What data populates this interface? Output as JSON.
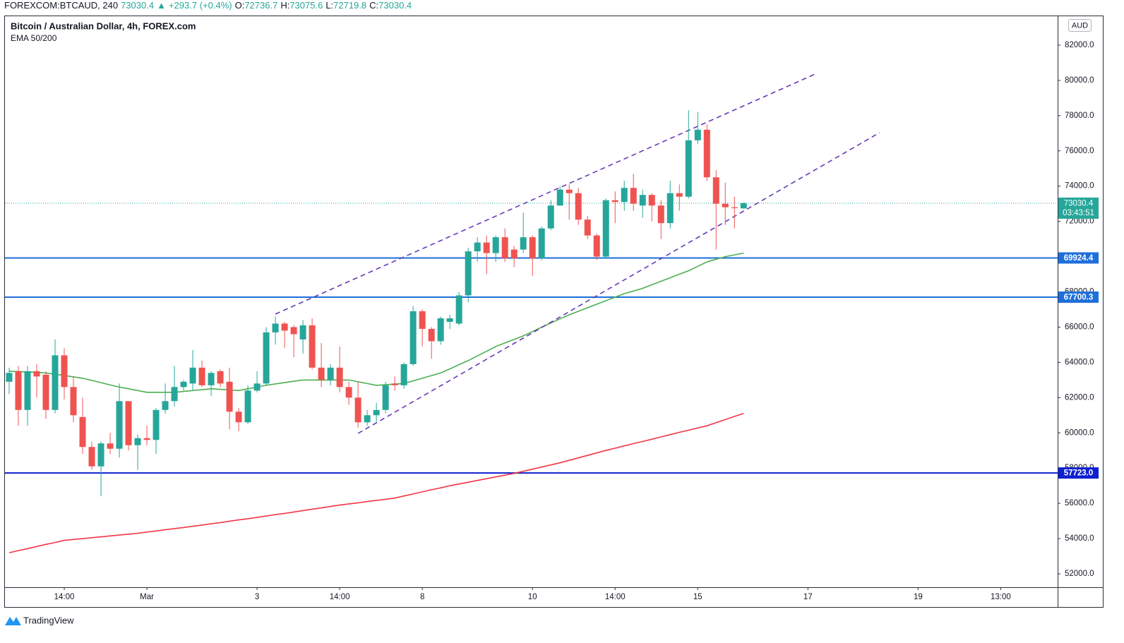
{
  "chart_data": {
    "type": "candlestick",
    "header": {
      "symbol": "FOREXCOM:BTCAUD, 240",
      "last": 73030.4,
      "arrow": "▲",
      "change": "+293.7 (+0.4%)",
      "ohlc": [
        {
          "label": "O:",
          "value": 72736.7
        },
        {
          "label": "H:",
          "value": 73075.6
        },
        {
          "label": "L:",
          "value": 72719.8
        },
        {
          "label": "C:",
          "value": 73030.4
        }
      ]
    },
    "title": "Bitcoin / Australian Dollar, 4h, FOREX.com",
    "subtitle": "EMA 50/200",
    "currency": "AUD",
    "up_color": "#26a69a",
    "down_color": "#ef5350",
    "open": [
      62900,
      63500,
      61300,
      63500,
      63300,
      61300,
      64400,
      62600,
      60900,
      59200,
      58100,
      59400,
      59100,
      61800,
      59300,
      59700,
      59600,
      61300,
      61800,
      62600,
      62800,
      63700,
      62700,
      63500,
      62900,
      61200,
      60600,
      62400,
      62800,
      65700,
      66200,
      66000,
      65300,
      66100,
      63700,
      63000,
      63700,
      62600,
      62000,
      60600,
      61000,
      61300,
      62800,
      62700,
      63900,
      66900,
      65900,
      65200,
      66300,
      66200,
      67800,
      70300,
      70800,
      70200,
      71100,
      70400,
      70400,
      71100,
      69900,
      71600,
      72900,
      73800,
      73600,
      72100,
      71200,
      70000,
      73200,
      73100,
      73900,
      72900,
      73500,
      72900,
      71900,
      73600,
      73400,
      76600,
      77200,
      74500,
      73000,
      72800,
      72736.7
    ],
    "high": [
      63700,
      63800,
      63800,
      63900,
      63500,
      65300,
      64800,
      63200,
      62000,
      59500,
      59500,
      60000,
      62800,
      61800,
      59900,
      60400,
      61400,
      62800,
      63800,
      63000,
      64700,
      64100,
      63500,
      63600,
      63700,
      61400,
      62700,
      63500,
      66000,
      66600,
      66300,
      66100,
      66400,
      66500,
      65100,
      63900,
      64900,
      62900,
      62900,
      61300,
      61700,
      62900,
      63200,
      64000,
      67200,
      67000,
      66000,
      66600,
      66700,
      68000,
      70500,
      71100,
      71200,
      71200,
      71600,
      70600,
      72500,
      71200,
      71700,
      73200,
      74000,
      74100,
      73900,
      72300,
      71300,
      73300,
      73700,
      74300,
      74700,
      73800,
      73600,
      73200,
      74300,
      74100,
      78300,
      78200,
      77500,
      74900,
      74200,
      73400,
      73075.6
    ],
    "low": [
      62200,
      60400,
      60400,
      62000,
      60800,
      61100,
      61900,
      60600,
      58800,
      57900,
      56400,
      58800,
      58600,
      59000,
      57900,
      59300,
      58800,
      61100,
      61500,
      62400,
      62400,
      62600,
      62100,
      62600,
      60200,
      60100,
      60500,
      62300,
      62700,
      65000,
      64800,
      64300,
      64500,
      63600,
      62600,
      62700,
      62300,
      61600,
      60300,
      60400,
      60600,
      61100,
      62400,
      62500,
      63800,
      64900,
      64200,
      65000,
      65900,
      66100,
      67400,
      69700,
      69000,
      69700,
      69700,
      69400,
      70200,
      68900,
      69800,
      71500,
      72900,
      72100,
      71800,
      71000,
      69800,
      69900,
      71900,
      72600,
      72600,
      72200,
      72000,
      71000,
      71600,
      72600,
      73300,
      76400,
      74300,
      70400,
      71800,
      71600,
      72719.8
    ],
    "close": [
      63400,
      61300,
      63500,
      63200,
      61300,
      64400,
      62600,
      61000,
      59200,
      58100,
      59400,
      59100,
      61800,
      59300,
      59700,
      59600,
      61300,
      61800,
      62600,
      62900,
      63700,
      62700,
      63400,
      62800,
      61200,
      60600,
      62400,
      62800,
      65700,
      66200,
      65800,
      65600,
      66100,
      63700,
      63000,
      63700,
      62600,
      62000,
      60600,
      61000,
      61300,
      62700,
      62700,
      63900,
      66900,
      65900,
      65200,
      66500,
      66500,
      67800,
      70300,
      70800,
      70200,
      71100,
      69900,
      69900,
      71100,
      69900,
      71600,
      72900,
      73800,
      73600,
      72100,
      71200,
      70000,
      73200,
      73100,
      73900,
      73000,
      73500,
      72900,
      71900,
      73600,
      73400,
      76600,
      77200,
      74500,
      73000,
      72800,
      72750,
      73030.4
    ],
    "series": [
      {
        "name": "EMA 50",
        "color": "#4caf50",
        "values": [
          63500,
          63480,
          63450,
          63430,
          63400,
          63330,
          63250,
          63180,
          63100,
          62980,
          62850,
          62720,
          62600,
          62500,
          62400,
          62300,
          62300,
          62300,
          62300,
          62350,
          62400,
          62450,
          62500,
          62470,
          62430,
          62400,
          62500,
          62600,
          62700,
          62780,
          62850,
          62930,
          63000,
          63000,
          63000,
          63000,
          63000,
          63000,
          62900,
          62800,
          62700,
          62730,
          62770,
          62800,
          62950,
          63100,
          63250,
          63400,
          63630,
          63870,
          64100,
          64370,
          64630,
          64900,
          65100,
          65300,
          65500,
          65750,
          66000,
          66230,
          66470,
          66700,
          66900,
          67100,
          67300,
          67500,
          67700,
          67900,
          68050,
          68200,
          68400,
          68600,
          68800,
          69000,
          69200,
          69450,
          69700,
          69850,
          70000,
          70100,
          70200
        ]
      },
      {
        "name": "EMA 200",
        "color": "#f23645",
        "values": [
          53200,
          53320,
          53430,
          53550,
          53670,
          53780,
          53900,
          53950,
          54000,
          54050,
          54100,
          54150,
          54200,
          54250,
          54300,
          54370,
          54430,
          54500,
          54570,
          54630,
          54700,
          54770,
          54840,
          54910,
          54990,
          55060,
          55130,
          55200,
          55280,
          55360,
          55430,
          55510,
          55590,
          55670,
          55740,
          55820,
          55900,
          55970,
          56030,
          56100,
          56170,
          56230,
          56300,
          56420,
          56530,
          56650,
          56770,
          56880,
          57000,
          57100,
          57200,
          57300,
          57400,
          57500,
          57600,
          57700,
          57820,
          57940,
          58060,
          58180,
          58300,
          58440,
          58580,
          58720,
          58860,
          59000,
          59130,
          59260,
          59390,
          59510,
          59640,
          59770,
          59900,
          60030,
          60150,
          60280,
          60400,
          60580,
          60750,
          60930,
          61100
        ]
      }
    ],
    "trend_lines": [
      {
        "color": "#673ab7",
        "x": [
          29,
          87.8
        ],
        "y": [
          66740,
          80360
        ]
      },
      {
        "color": "#673ab7",
        "x": [
          38,
          94.8
        ],
        "y": [
          59970,
          77030
        ]
      }
    ],
    "hlines": [
      {
        "value": 69924.4,
        "label": "69924.4",
        "color": "#1e6fd9"
      },
      {
        "value": 67700.3,
        "label": "67700.3",
        "color": "#1e6fd9"
      },
      {
        "value": 57723,
        "label": "57723.0",
        "color": "#0d1fd1"
      }
    ],
    "last_price": {
      "value": 73030.4,
      "label": "73030.4",
      "countdown": "03:43:51",
      "color": "#26a69a"
    },
    "xlim": [
      -0.46,
      114.2
    ],
    "ylim": [
      51240,
      83680
    ],
    "xticks": [
      {
        "value": 6,
        "label": "14:00"
      },
      {
        "value": 15,
        "label": "Mar"
      },
      {
        "value": 27,
        "label": "3"
      },
      {
        "value": 36,
        "label": "14:00"
      },
      {
        "value": 45,
        "label": "8"
      },
      {
        "value": 57,
        "label": "10"
      },
      {
        "value": 66,
        "label": "14:00"
      },
      {
        "value": 75,
        "label": "15"
      },
      {
        "value": 87,
        "label": "17"
      },
      {
        "value": 99,
        "label": "19"
      },
      {
        "value": 108,
        "label": "13:00"
      }
    ],
    "yticks": [
      {
        "value": 52000,
        "label": "52000.0"
      },
      {
        "value": 54000,
        "label": "54000.0"
      },
      {
        "value": 56000,
        "label": "56000.0"
      },
      {
        "value": 58000,
        "label": "58000.0"
      },
      {
        "value": 60000,
        "label": "60000.0"
      },
      {
        "value": 62000,
        "label": "62000.0"
      },
      {
        "value": 64000,
        "label": "64000.0"
      },
      {
        "value": 66000,
        "label": "66000.0"
      },
      {
        "value": 68000,
        "label": "68000.0"
      },
      {
        "value": 70000,
        "label": "70000.0"
      },
      {
        "value": 72000,
        "label": "72000.0"
      },
      {
        "value": 74000,
        "label": "74000.0"
      },
      {
        "value": 76000,
        "label": "76000.0"
      },
      {
        "value": 78000,
        "label": "78000.0"
      },
      {
        "value": 80000,
        "label": "80000.0"
      },
      {
        "value": 82000,
        "label": "82000.0"
      }
    ],
    "grid": false
  },
  "footer": {
    "brand": "TradingView"
  }
}
